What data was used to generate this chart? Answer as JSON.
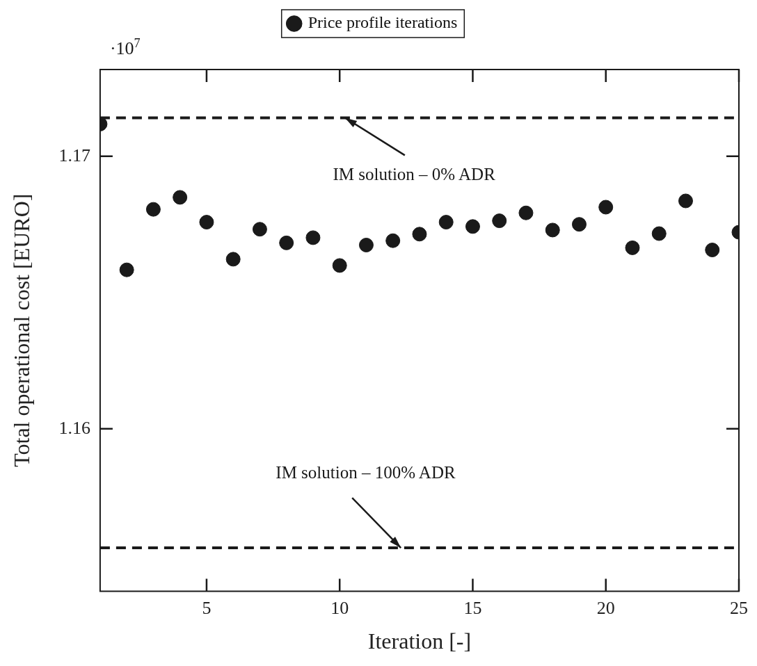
{
  "chart_data": {
    "type": "scatter",
    "xlabel": "Iteration [-]",
    "ylabel": "Total operational cost [EURO]",
    "x": [
      1,
      2,
      3,
      4,
      5,
      6,
      7,
      8,
      9,
      10,
      11,
      12,
      13,
      14,
      15,
      16,
      17,
      18,
      19,
      20,
      21,
      22,
      23,
      24,
      25
    ],
    "series": [
      {
        "name": "Price profile iterations",
        "color": "#1a1a1a",
        "values": [
          1.17118,
          1.16583,
          1.16805,
          1.16849,
          1.16758,
          1.16622,
          1.16732,
          1.16682,
          1.16701,
          1.16599,
          1.16674,
          1.1669,
          1.16714,
          1.16758,
          1.16742,
          1.16763,
          1.16792,
          1.16729,
          1.1675,
          1.16813,
          1.16664,
          1.16716,
          1.16836,
          1.16656,
          1.16721
        ]
      }
    ],
    "xlim": [
      1,
      25
    ],
    "xticks": [
      5,
      10,
      15,
      20,
      25
    ],
    "ylim": [
      1.15404,
      1.17318
    ],
    "yticks": [
      1.16,
      1.17
    ],
    "ref_lines": [
      {
        "axis": "y",
        "value": 1.17141,
        "color": "#1a1a1a",
        "line_style": "dashed"
      },
      {
        "axis": "y",
        "value": 1.15563,
        "color": "#1a1a1a",
        "line_style": "dashed"
      }
    ],
    "annotations": [
      "·10$^{7}$",
      {
        "text": "IM solution – 0% ADR",
        "x": 10.2,
        "y": 1.17141
      },
      {
        "text": "IM solution – 100% ADR",
        "x": 12.3,
        "y": 1.15563
      }
    ],
    "marker": "circle",
    "grid": false,
    "legend": "top"
  }
}
